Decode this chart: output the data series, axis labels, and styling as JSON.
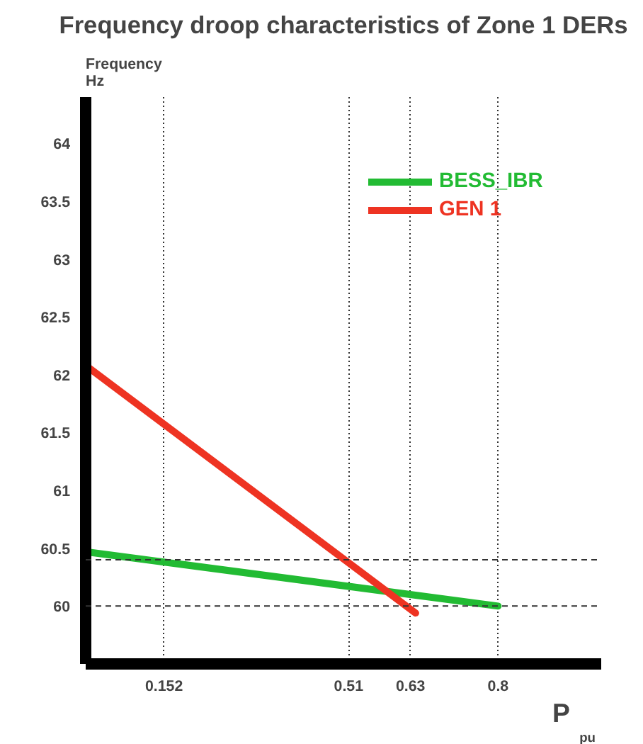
{
  "chart_data": {
    "type": "line",
    "title": "Frequency droop characteristics of Zone 1 DERs",
    "xlabel": "P$_{pu}$",
    "ylabel": "Frequency\nHz",
    "series": [
      {
        "name": "BESS_IBR",
        "color": "#22bb33",
        "x": [
          0,
          0.8
        ],
        "values": [
          60.47,
          60.0
        ]
      },
      {
        "name": "GEN 1",
        "color": "#ee3322",
        "x": [
          0,
          0.64
        ],
        "values": [
          62.08,
          59.94
        ]
      }
    ],
    "xlim": [
      0,
      1.0
    ],
    "xticks": [
      0.152,
      0.51,
      0.63,
      0.8
    ],
    "ylim": [
      59.5,
      64.4
    ],
    "yticks": [
      60,
      60.5,
      61,
      61.5,
      62,
      62.5,
      63,
      63.5,
      64
    ],
    "ref_lines": [
      {
        "axis": "y",
        "value": 60,
        "line_style": "dashed"
      },
      {
        "axis": "y",
        "value": 60.4,
        "line_style": "dashed"
      }
    ],
    "grid": "x",
    "legend": "top right",
    "marker": "none",
    "line_style": "solid"
  }
}
